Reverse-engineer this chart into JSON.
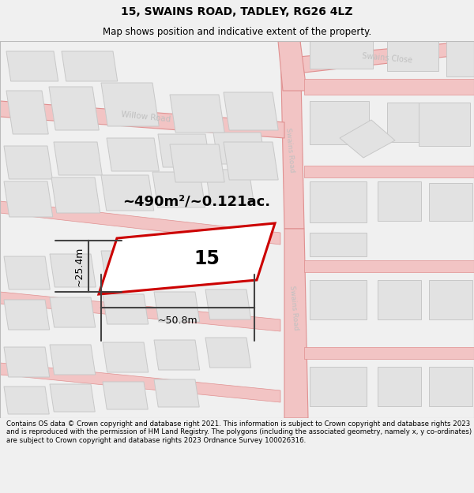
{
  "title": "15, SWAINS ROAD, TADLEY, RG26 4LZ",
  "subtitle": "Map shows position and indicative extent of the property.",
  "footer": "Contains OS data © Crown copyright and database right 2021. This information is subject to Crown copyright and database rights 2023 and is reproduced with the permission of HM Land Registry. The polygons (including the associated geometry, namely x, y co-ordinates) are subject to Crown copyright and database rights 2023 Ordnance Survey 100026316.",
  "bg_color": "#f0f0f0",
  "map_bg": "#ffffff",
  "road_fill": "#f2c4c4",
  "road_edge": "#e09090",
  "road_outline": "#d4a0a0",
  "building_fill": "#e2e2e2",
  "building_edge": "#c8c8c8",
  "highlight_color": "#cc0000",
  "dim_color": "#444444",
  "label_color": "#c0c0c0",
  "area_label": "~490m²/~0.121ac.",
  "width_label": "~50.8m",
  "height_label": "~25.4m",
  "plot_number": "15",
  "title_fontsize": 10,
  "subtitle_fontsize": 8.5,
  "footer_fontsize": 6.2,
  "figsize": [
    6.0,
    6.25
  ],
  "dpi": 100
}
